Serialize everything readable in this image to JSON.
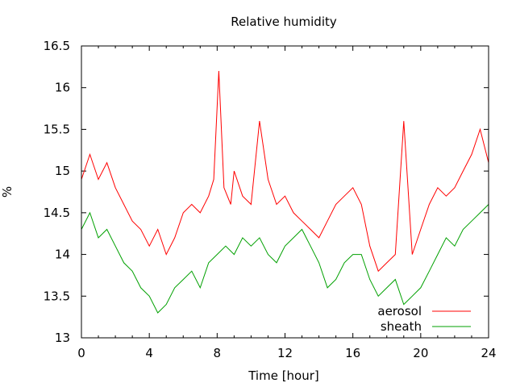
{
  "chart_data": {
    "type": "line",
    "title": "Relative humidity",
    "xlabel": "Time [hour]",
    "ylabel": "%",
    "xlim": [
      0,
      24
    ],
    "ylim": [
      13,
      16.5
    ],
    "xticks": [
      0,
      4,
      8,
      12,
      16,
      20,
      24
    ],
    "yticks": [
      13,
      13.5,
      14,
      14.5,
      15,
      15.5,
      16,
      16.5
    ],
    "xtick_labels": [
      "0",
      "4",
      "8",
      "12",
      "16",
      "20",
      "24"
    ],
    "ytick_labels": [
      "13",
      "13.5",
      "14",
      "14.5",
      "15",
      "15.5",
      "16",
      "16.5"
    ],
    "grid": false,
    "legend_position": "bottom-right",
    "series": [
      {
        "name": "aerosol",
        "color": "#ff0000",
        "x": [
          0.0,
          0.5,
          1.0,
          1.5,
          2.0,
          2.5,
          3.0,
          3.5,
          4.0,
          4.5,
          5.0,
          5.5,
          6.0,
          6.5,
          7.0,
          7.5,
          7.8,
          8.1,
          8.4,
          8.8,
          9.0,
          9.5,
          10.0,
          10.5,
          11.0,
          11.5,
          12.0,
          12.5,
          13.0,
          13.5,
          14.0,
          14.5,
          15.0,
          15.5,
          16.0,
          16.5,
          17.0,
          17.5,
          18.0,
          18.5,
          19.0,
          19.5,
          20.0,
          20.5,
          21.0,
          21.5,
          22.0,
          22.5,
          23.0,
          23.5,
          24.0
        ],
        "values": [
          14.9,
          15.2,
          14.9,
          15.1,
          14.8,
          14.6,
          14.4,
          14.3,
          14.1,
          14.3,
          14.0,
          14.2,
          14.5,
          14.6,
          14.5,
          14.7,
          14.9,
          16.2,
          14.8,
          14.6,
          15.0,
          14.7,
          14.6,
          15.6,
          14.9,
          14.6,
          14.7,
          14.5,
          14.4,
          14.3,
          14.2,
          14.4,
          14.6,
          14.7,
          14.8,
          14.6,
          14.1,
          13.8,
          13.9,
          14.0,
          15.6,
          14.0,
          14.3,
          14.6,
          14.8,
          14.7,
          14.8,
          15.0,
          15.2,
          15.5,
          15.1
        ]
      },
      {
        "name": "sheath",
        "color": "#00a000",
        "x": [
          0.0,
          0.5,
          1.0,
          1.5,
          2.0,
          2.5,
          3.0,
          3.5,
          4.0,
          4.5,
          5.0,
          5.5,
          6.0,
          6.5,
          7.0,
          7.5,
          8.0,
          8.5,
          9.0,
          9.5,
          10.0,
          10.5,
          11.0,
          11.5,
          12.0,
          12.5,
          13.0,
          13.5,
          14.0,
          14.5,
          15.0,
          15.5,
          16.0,
          16.5,
          17.0,
          17.5,
          18.0,
          18.5,
          19.0,
          19.5,
          20.0,
          20.5,
          21.0,
          21.5,
          22.0,
          22.5,
          23.0,
          23.5,
          24.0
        ],
        "values": [
          14.3,
          14.5,
          14.2,
          14.3,
          14.1,
          13.9,
          13.8,
          13.6,
          13.5,
          13.3,
          13.4,
          13.6,
          13.7,
          13.8,
          13.6,
          13.9,
          14.0,
          14.1,
          14.0,
          14.2,
          14.1,
          14.2,
          14.0,
          13.9,
          14.1,
          14.2,
          14.3,
          14.1,
          13.9,
          13.6,
          13.7,
          13.9,
          14.0,
          14.0,
          13.7,
          13.5,
          13.6,
          13.7,
          13.4,
          13.5,
          13.6,
          13.8,
          14.0,
          14.2,
          14.1,
          14.3,
          14.4,
          14.5,
          14.6
        ]
      }
    ]
  }
}
